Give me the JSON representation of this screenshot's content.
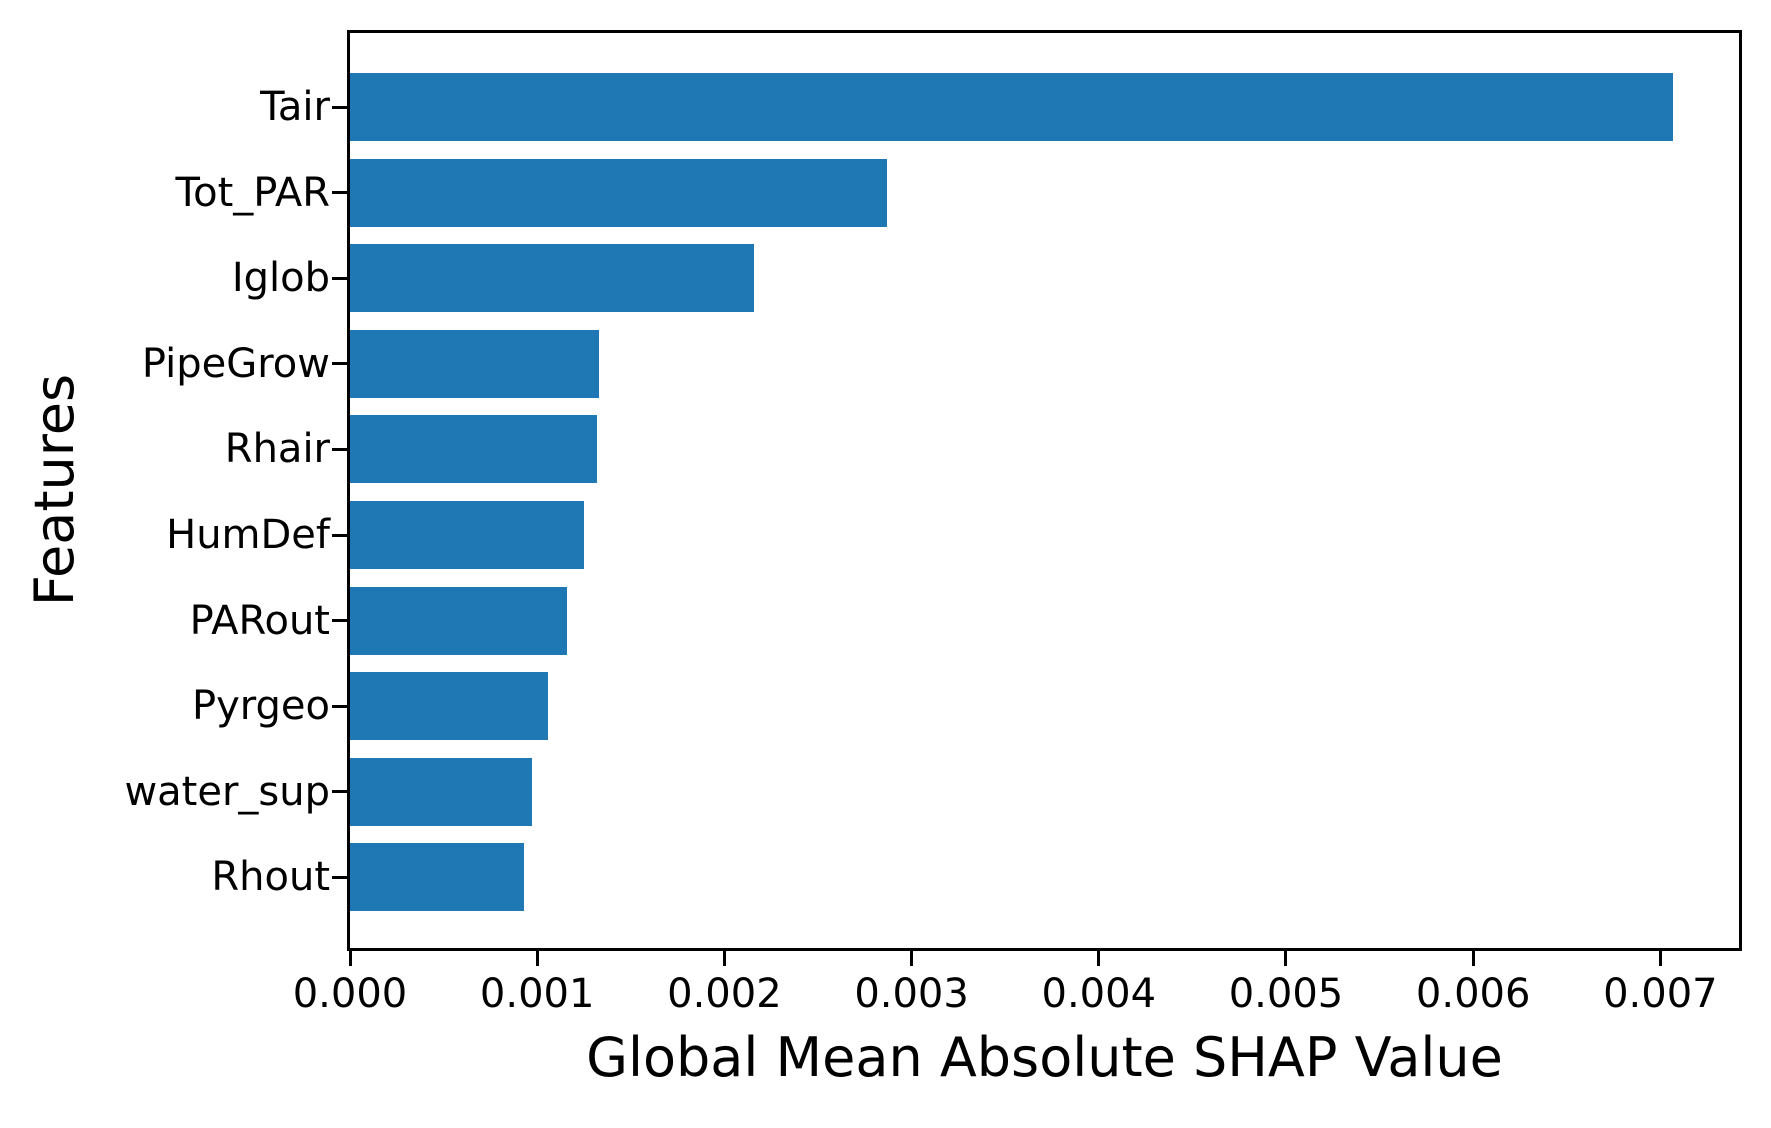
{
  "chart_data": {
    "type": "bar",
    "orientation": "horizontal",
    "title": "",
    "xlabel": "Global Mean Absolute SHAP Value",
    "ylabel": "Features",
    "categories": [
      "Tair",
      "Tot_PAR",
      "Iglob",
      "PipeGrow",
      "Rhair",
      "HumDef",
      "PARout",
      "Pyrgeo",
      "water_sup",
      "Rhout"
    ],
    "values": [
      0.00707,
      0.00287,
      0.00216,
      0.00133,
      0.00132,
      0.00125,
      0.00116,
      0.00106,
      0.00097,
      0.00093
    ],
    "xlim": [
      0,
      0.00742
    ],
    "xticks": {
      "values": [
        0,
        0.001,
        0.002,
        0.003,
        0.004,
        0.005,
        0.006,
        0.007
      ],
      "labels": [
        "0.000",
        "0.001",
        "0.002",
        "0.003",
        "0.004",
        "0.005",
        "0.006",
        "0.007"
      ]
    },
    "bar_color": "#1f77b4",
    "spine_color": "#000000",
    "grid": false,
    "legend": null
  }
}
